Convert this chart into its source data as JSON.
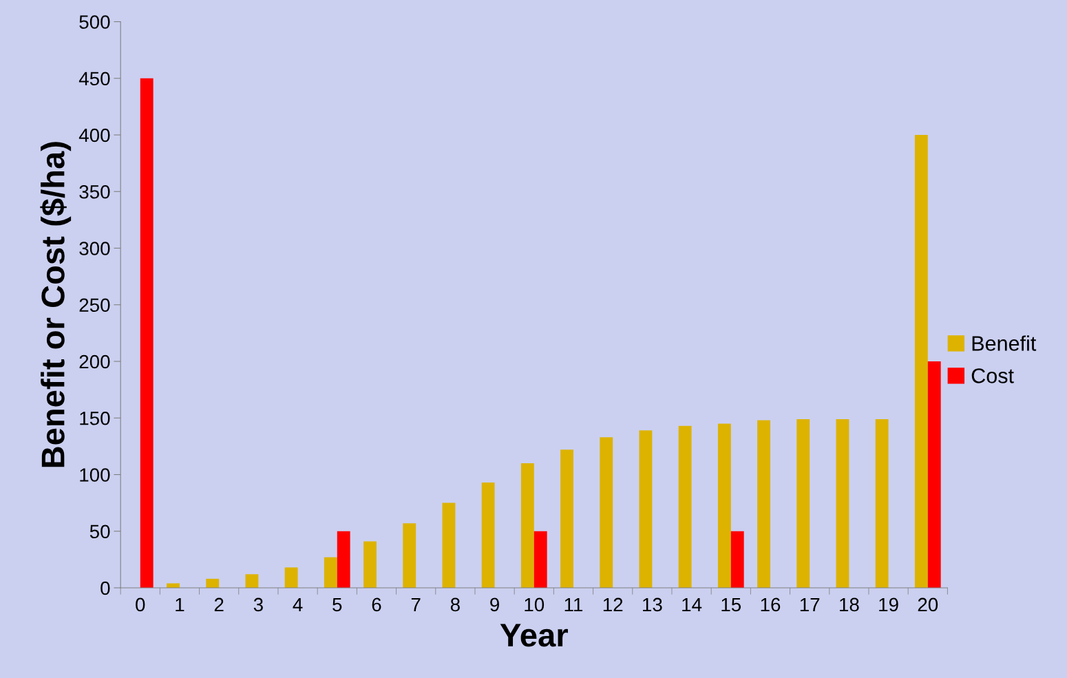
{
  "chart_data": {
    "type": "bar",
    "xlabel": "Year",
    "ylabel": "Benefit or Cost ($/ha)",
    "categories": [
      "0",
      "1",
      "2",
      "3",
      "4",
      "5",
      "6",
      "7",
      "8",
      "9",
      "10",
      "11",
      "12",
      "13",
      "14",
      "15",
      "16",
      "17",
      "18",
      "19",
      "20"
    ],
    "series": [
      {
        "name": "Benefit",
        "color": "#ddb300",
        "values": [
          null,
          4,
          8,
          12,
          18,
          27,
          41,
          57,
          75,
          93,
          110,
          122,
          133,
          139,
          143,
          145,
          148,
          149,
          149,
          149,
          400
        ]
      },
      {
        "name": "Cost",
        "color": "#ff0000",
        "values": [
          450,
          null,
          null,
          null,
          null,
          50,
          null,
          null,
          null,
          null,
          50,
          null,
          null,
          null,
          null,
          50,
          null,
          null,
          null,
          null,
          200
        ]
      }
    ],
    "ylim": [
      0,
      500
    ],
    "yticks": [
      0,
      50,
      100,
      150,
      200,
      250,
      300,
      350,
      400,
      450,
      500
    ],
    "grid": false,
    "legend": "right"
  }
}
